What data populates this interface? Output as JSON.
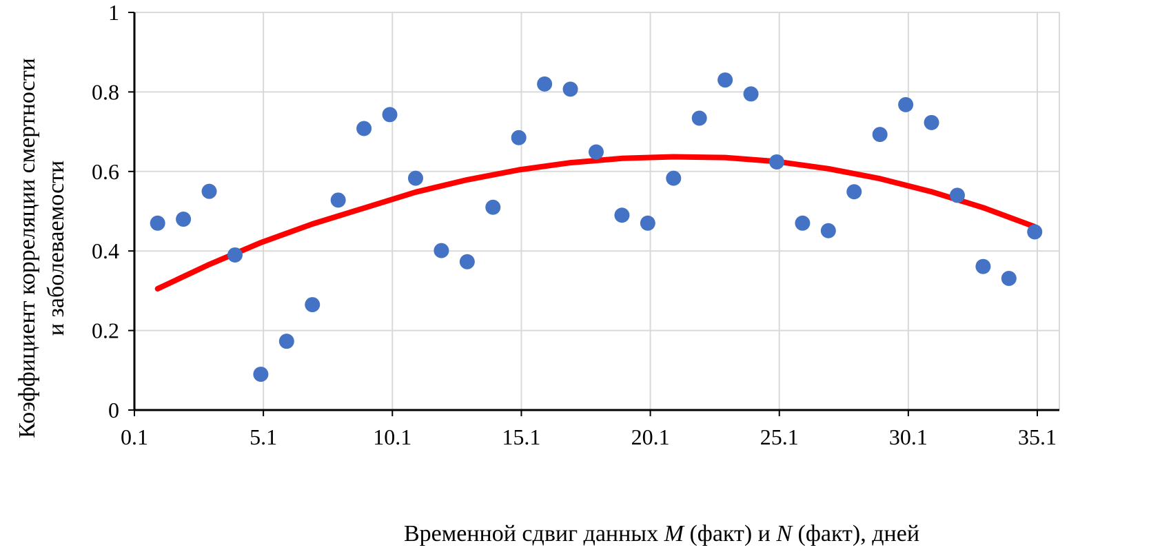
{
  "chart_data": {
    "type": "scatter",
    "title": "",
    "xlabel_parts": [
      "Временной сдвиг данных ",
      "M",
      " (факт) и ",
      "N",
      " (факт), дней"
    ],
    "ylabel_lines": [
      "Коэффициент корреляции смертности",
      "и заболеваемости"
    ],
    "xlim": [
      0.1,
      35.1
    ],
    "ylim": [
      0,
      1
    ],
    "x_ticks": [
      "0.1",
      "5.1",
      "10.1",
      "15.1",
      "20.1",
      "25.1",
      "30.1",
      "35.1"
    ],
    "y_ticks": [
      "0",
      "0.2",
      "0.4",
      "0.6",
      "0.8",
      "1"
    ],
    "grid": true,
    "colors": {
      "points": "#4472C4",
      "trend": "#FF0000",
      "grid": "#D9D9D9",
      "axis": "#000000"
    },
    "series": [
      {
        "type": "scatter",
        "x": [
          1,
          2,
          3,
          4,
          5,
          6,
          7,
          8,
          9,
          10,
          11,
          12,
          13,
          14,
          15,
          16,
          17,
          18,
          19,
          20,
          21,
          22,
          23,
          24,
          25,
          26,
          27,
          28,
          29,
          30,
          31,
          32,
          33,
          34,
          35
        ],
        "y": [
          0.47,
          0.48,
          0.55,
          0.39,
          0.09,
          0.173,
          0.265,
          0.528,
          0.708,
          0.743,
          0.583,
          0.401,
          0.373,
          0.51,
          0.685,
          0.82,
          0.807,
          0.649,
          0.49,
          0.47,
          0.583,
          0.734,
          0.83,
          0.795,
          0.624,
          0.47,
          0.451,
          0.549,
          0.693,
          0.768,
          0.723,
          0.54,
          0.361,
          0.331,
          0.448
        ]
      },
      {
        "type": "trendline",
        "fit": "polynomial-2",
        "x": [
          1,
          3,
          5,
          7,
          9,
          11,
          13,
          15,
          17,
          19,
          21,
          23,
          25,
          27,
          29,
          31,
          33,
          35
        ],
        "y": [
          0.305,
          0.366,
          0.421,
          0.468,
          0.508,
          0.548,
          0.579,
          0.604,
          0.622,
          0.633,
          0.637,
          0.635,
          0.625,
          0.607,
          0.582,
          0.549,
          0.509,
          0.461
        ]
      }
    ]
  }
}
